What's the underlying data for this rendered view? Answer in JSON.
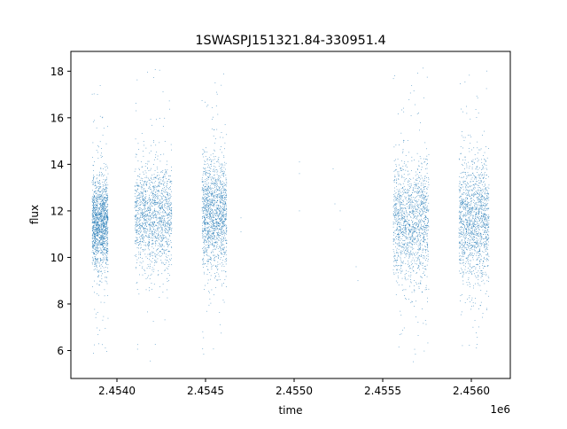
{
  "chart_data": {
    "type": "scatter",
    "title": "1SWASPJ151321.84-330951.4",
    "xlabel": "time",
    "ylabel": "flux",
    "x_offset_label": "1e6",
    "x_range": [
      2453740,
      2456220
    ],
    "y_range": [
      4.8,
      18.85
    ],
    "x_ticks": [
      2.454,
      2.4545,
      2.455,
      2.4555,
      2.456
    ],
    "x_tick_labels": [
      "2.4540",
      "2.4545",
      "2.4550",
      "2.4555",
      "2.4560"
    ],
    "y_ticks": [
      6,
      8,
      10,
      12,
      14,
      16,
      18
    ],
    "y_tick_labels": [
      "6",
      "8",
      "10",
      "12",
      "14",
      "16",
      "18"
    ],
    "grid": false,
    "legend": "none",
    "marker_color": "#1f77b4",
    "clusters": [
      {
        "x_start": 2453860,
        "x_end": 2453950,
        "y_center": 11.5,
        "y_spread": 1.0,
        "y_min": 5.7,
        "y_max": 17.4
      },
      {
        "x_start": 2454100,
        "x_end": 2454310,
        "y_center": 11.8,
        "y_spread": 1.1,
        "y_min": 5.5,
        "y_max": 18.1
      },
      {
        "x_start": 2454480,
        "x_end": 2454620,
        "y_center": 11.8,
        "y_spread": 1.2,
        "y_min": 5.6,
        "y_max": 18.1
      },
      {
        "x_start": 2455560,
        "x_end": 2455760,
        "y_center": 11.5,
        "y_spread": 1.3,
        "y_min": 5.5,
        "y_max": 18.3
      },
      {
        "x_start": 2455930,
        "x_end": 2456100,
        "y_center": 11.6,
        "y_spread": 1.3,
        "y_min": 5.9,
        "y_max": 18.1
      }
    ],
    "isolated_points": [
      {
        "x": 2454700,
        "y": 11.7
      },
      {
        "x": 2454700,
        "y": 11.1
      },
      {
        "x": 2455030,
        "y": 14.1
      },
      {
        "x": 2455030,
        "y": 13.6
      },
      {
        "x": 2455030,
        "y": 12.0
      },
      {
        "x": 2455220,
        "y": 13.8
      },
      {
        "x": 2455230,
        "y": 12.3
      },
      {
        "x": 2455260,
        "y": 12.0
      },
      {
        "x": 2455260,
        "y": 11.2
      },
      {
        "x": 2455350,
        "y": 9.6
      },
      {
        "x": 2455360,
        "y": 9.0
      }
    ]
  }
}
